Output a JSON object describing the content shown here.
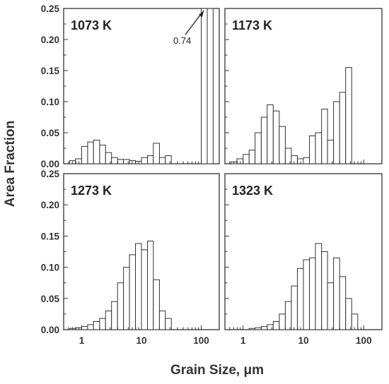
{
  "chart_data": {
    "type": "bar",
    "x_scale": "log",
    "xlabel": "Grain Size, μm",
    "ylabel": "Area Fraction",
    "xlim": [
      0.5,
      200
    ],
    "ylim": [
      0,
      0.25
    ],
    "xtick_labels": [
      "1",
      "10",
      "100"
    ],
    "ytick_labels": [
      "0.00",
      "0.05",
      "0.10",
      "0.15",
      "0.20",
      "0.25"
    ],
    "bin_edges": [
      0.63,
      0.79,
      1.0,
      1.26,
      1.58,
      2.0,
      2.51,
      3.16,
      3.98,
      5.01,
      6.31,
      7.94,
      10.0,
      12.6,
      15.8,
      20.0,
      25.1,
      31.6,
      39.8,
      50.1,
      63.1,
      79.4,
      100.0,
      126.0,
      158.0
    ],
    "panels": [
      {
        "title": "1073 K",
        "annotation": "0.74",
        "values": [
          0.005,
          0.008,
          0.028,
          0.035,
          0.038,
          0.03,
          0.018,
          0.01,
          0.007,
          0.007,
          0.005,
          0.004,
          0.01,
          0.013,
          0.033,
          0.01,
          0.013,
          0,
          0,
          0,
          0,
          0,
          0.25,
          0.25
        ]
      },
      {
        "title": "1173 K",
        "values": [
          0.003,
          0.008,
          0.015,
          0.022,
          0.05,
          0.075,
          0.095,
          0.085,
          0.06,
          0.025,
          0.013,
          0.008,
          0.01,
          0.045,
          0.05,
          0.088,
          0.038,
          0.1,
          0.115,
          0.155,
          0,
          0,
          0,
          0
        ]
      },
      {
        "title": "1273 K",
        "values": [
          0.002,
          0.003,
          0.005,
          0.008,
          0.013,
          0.018,
          0.03,
          0.045,
          0.075,
          0.1,
          0.12,
          0.138,
          0.128,
          0.142,
          0.08,
          0.03,
          0.018,
          0,
          0,
          0,
          0,
          0,
          0,
          0
        ]
      },
      {
        "title": "1323 K",
        "values": [
          0,
          0,
          0,
          0.002,
          0.003,
          0.005,
          0.008,
          0.013,
          0.025,
          0.045,
          0.07,
          0.098,
          0.112,
          0.115,
          0.138,
          0.125,
          0.075,
          0.115,
          0.085,
          0.05,
          0.025,
          0,
          0,
          0
        ]
      }
    ]
  }
}
